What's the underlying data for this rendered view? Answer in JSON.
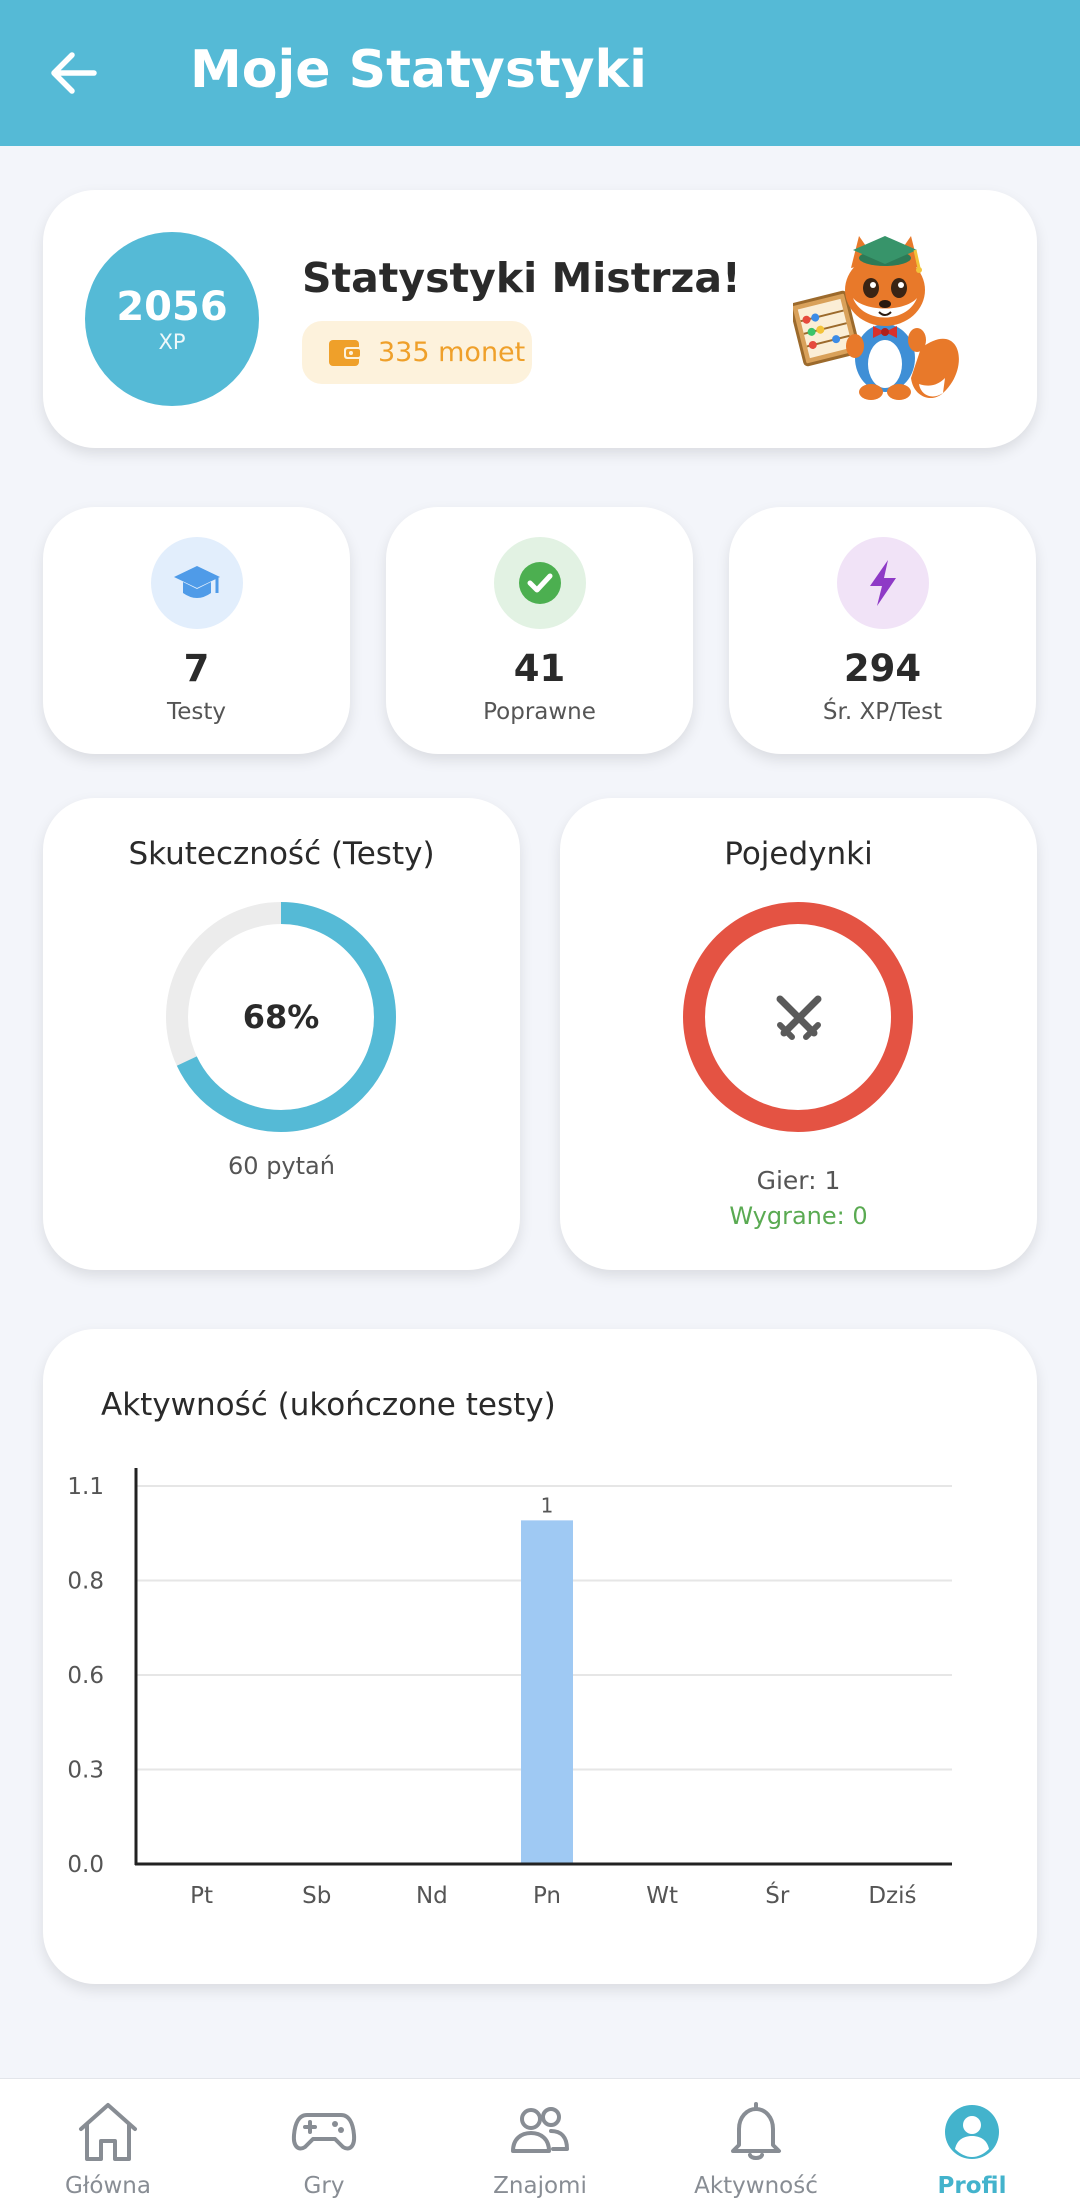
{
  "appbar": {
    "title": "Moje Statystyki"
  },
  "header": {
    "xp_value": "2056",
    "xp_unit": "XP",
    "title": "Statystyki Mistrza!",
    "coins_label": "335 monet"
  },
  "stats": [
    {
      "value": "7",
      "label": "Testy",
      "icon": "graduation-cap-icon",
      "color": "#4f9be8",
      "bg": "#e2eefc"
    },
    {
      "value": "41",
      "label": "Poprawne",
      "icon": "check-circle-icon",
      "color": "#4caf50",
      "bg": "#e2f2e3"
    },
    {
      "value": "294",
      "label": "Śr. XP/Test",
      "icon": "lightning-icon",
      "color": "#8e3ac6",
      "bg": "#f1e3f7"
    }
  ],
  "accuracy": {
    "title": "Skuteczność (Testy)",
    "percent_label": "68%",
    "percent": 68,
    "subtitle": "60 pytań",
    "color": "#55bad6",
    "track_color": "#ececec"
  },
  "duels": {
    "title": "Pojedynki",
    "games_label": "Gier: 1",
    "wins_label": "Wygrane: 0",
    "ring_color": "#e45343",
    "icon": "crossed-swords-icon"
  },
  "activity": {
    "title": "Aktywność (ukończone testy)"
  },
  "chart_data": {
    "type": "bar",
    "title": "Aktywność (ukończone testy)",
    "categories": [
      "Pt",
      "Sb",
      "Nd",
      "Pn",
      "Wt",
      "Śr",
      "Dziś"
    ],
    "values": [
      0,
      0,
      0,
      1,
      0,
      0,
      0
    ],
    "data_labels": [
      "",
      "",
      "",
      "1",
      "",
      "",
      ""
    ],
    "yticks": [
      "0.0",
      "0.3",
      "0.6",
      "0.8",
      "1.1"
    ],
    "ytick_values": [
      0,
      0.275,
      0.55,
      0.825,
      1.1
    ],
    "ylim": [
      0,
      1.1
    ],
    "grid": true,
    "bar_color": "#9fc9f3"
  },
  "nav": [
    {
      "label": "Główna",
      "icon": "home-icon",
      "active": false
    },
    {
      "label": "Gry",
      "icon": "gamepad-icon",
      "active": false
    },
    {
      "label": "Znajomi",
      "icon": "friends-icon",
      "active": false
    },
    {
      "label": "Aktywność",
      "icon": "bell-icon",
      "active": false
    },
    {
      "label": "Profil",
      "icon": "profile-icon",
      "active": true
    }
  ]
}
